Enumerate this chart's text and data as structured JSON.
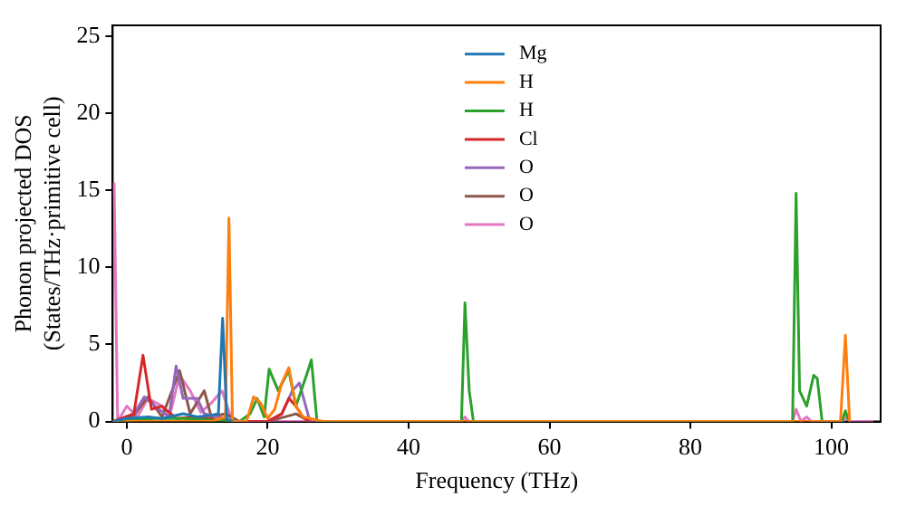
{
  "chart_data": {
    "type": "line",
    "xlabel": "Frequency (THz)",
    "ylabel": "Phonon projected DOS\n(States/THz·primitive cell)",
    "xlim": [
      -2,
      107
    ],
    "ylim": [
      0,
      25.7
    ],
    "xticks": [
      0,
      20,
      40,
      60,
      80,
      100
    ],
    "yticks": [
      0,
      5,
      10,
      15,
      20,
      25
    ],
    "grid": false,
    "legend": "top",
    "marker": "none",
    "line_style": "solid",
    "series": [
      {
        "name": "Mg",
        "color": "#1f77b4",
        "x": [
          -2,
          0,
          3,
          5,
          8,
          10,
          12,
          13,
          13.6,
          14.2,
          15
        ],
        "values": [
          0,
          0.2,
          0.3,
          0.2,
          0.5,
          0.3,
          0.4,
          0.5,
          6.7,
          0.2,
          0
        ]
      },
      {
        "name": "H",
        "color": "#ff7f0e",
        "x": [
          -2,
          12,
          14,
          14.5,
          15,
          17,
          18,
          19,
          20,
          21,
          22,
          23,
          24,
          25,
          28,
          101.3,
          102,
          102.6
        ],
        "values": [
          0,
          0,
          0.3,
          13.2,
          0,
          0,
          1.6,
          1.2,
          0.2,
          0.8,
          2.5,
          3.5,
          1,
          0.3,
          0,
          0,
          5.6,
          0
        ]
      },
      {
        "name": "H",
        "color": "#2ca02c",
        "x": [
          -2,
          4,
          8,
          12,
          16,
          17.5,
          18.5,
          19.5,
          20.2,
          21.5,
          23,
          24,
          25.5,
          26.2,
          27,
          47.5,
          48,
          48.6,
          49.2,
          94.5,
          95,
          95.5,
          96.5,
          97.5,
          98,
          98.7,
          101.5,
          102,
          102.5
        ],
        "values": [
          0,
          0.2,
          0.2,
          0.1,
          0,
          0.5,
          1.5,
          0.3,
          3.4,
          2,
          3.3,
          1,
          3,
          4,
          0,
          0,
          7.7,
          2,
          0,
          0,
          14.8,
          2,
          1,
          3,
          2.8,
          0,
          0,
          0.7,
          0
        ]
      },
      {
        "name": "Cl",
        "color": "#d62728",
        "x": [
          -2,
          1,
          2.3,
          3.5,
          5,
          7,
          10,
          15,
          20,
          22,
          23,
          24,
          25,
          26
        ],
        "values": [
          0,
          0.5,
          4.3,
          0.8,
          1,
          0.2,
          0.3,
          0,
          0,
          0.5,
          1.5,
          1,
          0.3,
          0
        ]
      },
      {
        "name": "O",
        "color": "#9467bd",
        "x": [
          -2,
          1,
          2.5,
          4,
          6,
          7,
          8,
          10,
          11,
          13,
          15,
          20,
          22,
          23.5,
          24.5,
          26
        ],
        "values": [
          0,
          0.5,
          1.6,
          1,
          0.3,
          3.6,
          1.5,
          1.5,
          0.5,
          0.3,
          0,
          0,
          0.5,
          2,
          2.5,
          0
        ]
      },
      {
        "name": "O",
        "color": "#8c564b",
        "x": [
          -2,
          1,
          3,
          5,
          7.5,
          9,
          11,
          12,
          14,
          16,
          20,
          24,
          26
        ],
        "values": [
          0,
          0.4,
          1.6,
          0.3,
          3.3,
          0.5,
          2,
          0.3,
          0.5,
          0,
          0,
          0.5,
          0
        ]
      },
      {
        "name": "O",
        "color": "#e377c2",
        "x": [
          -1.8,
          -1.3,
          0,
          1.5,
          3,
          5,
          6,
          7.5,
          9,
          10.5,
          12,
          13.5,
          15,
          47.5,
          48,
          48.5,
          94.5,
          95,
          95.7,
          96.5,
          97.2,
          101.7,
          102.2,
          102.7,
          106
        ],
        "values": [
          15.5,
          0,
          1,
          0.3,
          1.5,
          1,
          0.2,
          3,
          2,
          0.6,
          1.2,
          2,
          0,
          0,
          0.3,
          0,
          0,
          0.8,
          0,
          0.3,
          0,
          0,
          0.3,
          0,
          0
        ]
      }
    ]
  }
}
